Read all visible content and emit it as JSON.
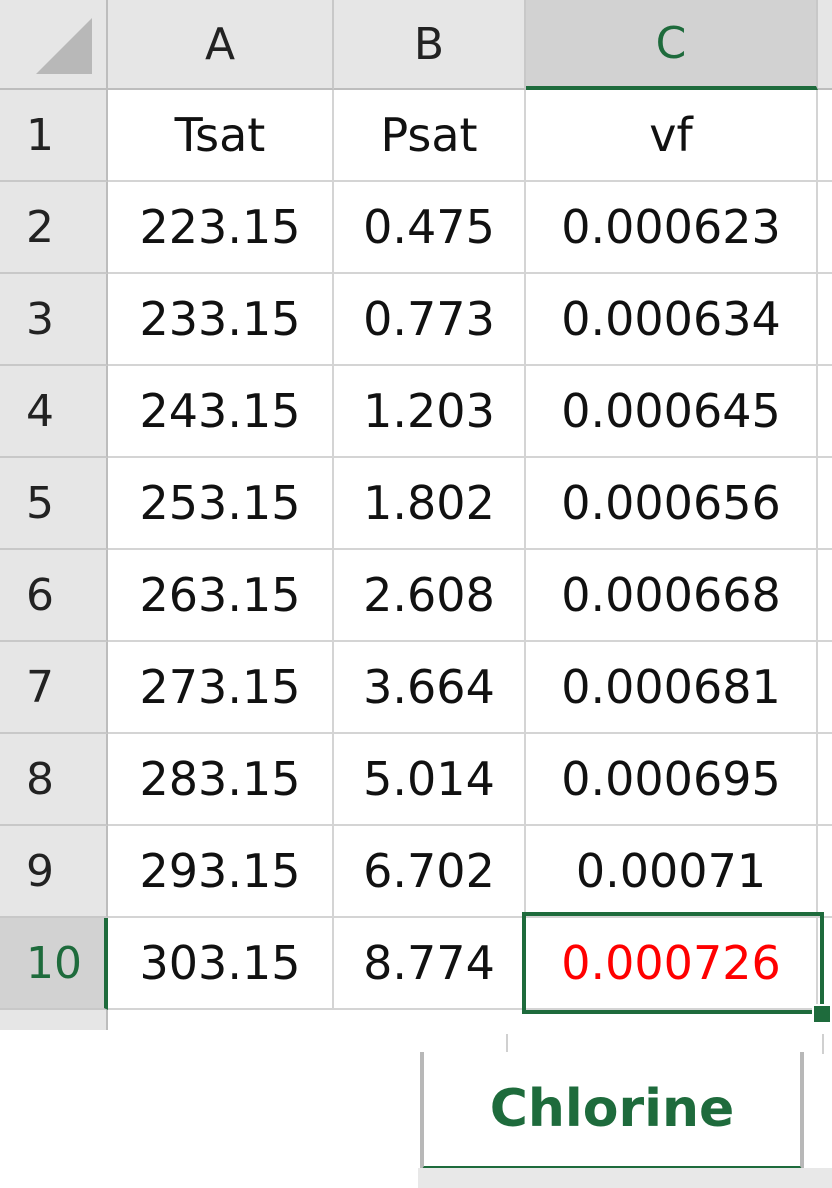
{
  "columns": [
    "A",
    "B",
    "C"
  ],
  "rows": [
    {
      "num": "1",
      "cells": [
        "Tsat",
        "Psat",
        "vf"
      ]
    },
    {
      "num": "2",
      "cells": [
        "223.15",
        "0.475",
        "0.000623"
      ]
    },
    {
      "num": "3",
      "cells": [
        "233.15",
        "0.773",
        "0.000634"
      ]
    },
    {
      "num": "4",
      "cells": [
        "243.15",
        "1.203",
        "0.000645"
      ]
    },
    {
      "num": "5",
      "cells": [
        "253.15",
        "1.802",
        "0.000656"
      ]
    },
    {
      "num": "6",
      "cells": [
        "263.15",
        "2.608",
        "0.000668"
      ]
    },
    {
      "num": "7",
      "cells": [
        "273.15",
        "3.664",
        "0.000681"
      ]
    },
    {
      "num": "8",
      "cells": [
        "283.15",
        "5.014",
        "0.000695"
      ]
    },
    {
      "num": "9",
      "cells": [
        "293.15",
        "6.702",
        "0.00071"
      ]
    },
    {
      "num": "10",
      "cells": [
        "303.15",
        "8.774",
        "0.000726"
      ]
    }
  ],
  "active_cell": "C10",
  "active_cell_text_color": "#ff0000",
  "accent_color": "#1e6b3c",
  "sheet_tab": {
    "label": "Chlorine"
  }
}
